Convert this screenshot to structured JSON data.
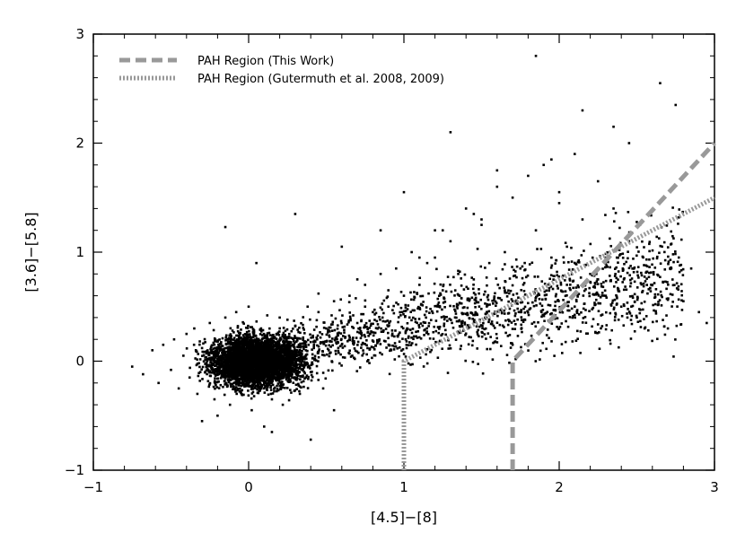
{
  "chart_data": {
    "type": "scatter",
    "title": "",
    "xlabel": "[4.5]−[8]",
    "ylabel": "[3.6]−[5.8]",
    "xlim": [
      -1,
      3
    ],
    "ylim": [
      -1,
      3
    ],
    "x_ticks": [
      -1,
      0,
      1,
      2,
      3
    ],
    "x_tick_labels": [
      "−1",
      "0",
      "1",
      "2",
      "3"
    ],
    "y_ticks": [
      -1,
      0,
      1,
      2,
      3
    ],
    "y_tick_labels": [
      "−1",
      "0",
      "1",
      "2",
      "3"
    ],
    "grid": false,
    "legend_position": "top-left",
    "colors": {
      "points": "#000000",
      "pah_lines": "#999999"
    },
    "series": [
      {
        "kind": "points",
        "note_points_sampled": "dense cloud of sources; representative sample",
        "x": [
          -0.75,
          -0.68,
          -0.62,
          -0.58,
          -0.55,
          -0.5,
          -0.48,
          -0.45,
          -0.42,
          -0.4,
          -0.38,
          -0.35,
          -0.33,
          -0.3,
          -0.28,
          -0.25,
          -0.22,
          -0.2,
          -0.18,
          -0.15,
          -0.12,
          -0.1,
          -0.08,
          -0.05,
          -0.03,
          0.0,
          0.02,
          0.05,
          0.08,
          0.1,
          0.12,
          0.15,
          0.18,
          0.2,
          0.22,
          0.25,
          0.28,
          0.3,
          0.33,
          0.35,
          0.38,
          0.4,
          0.42,
          0.45,
          0.48,
          0.5,
          0.55,
          0.6,
          0.65,
          0.7,
          0.75,
          0.8,
          0.85,
          0.9,
          0.95,
          1.0,
          1.05,
          1.1,
          1.15,
          1.2,
          1.25,
          1.3,
          1.35,
          1.4,
          1.45,
          1.5,
          1.55,
          1.6,
          1.65,
          1.7,
          1.75,
          1.8,
          1.85,
          1.9,
          1.95,
          2.0,
          2.05,
          2.1,
          2.15,
          2.2,
          2.25,
          2.3,
          2.35,
          2.4,
          2.45,
          2.5,
          2.6,
          2.7,
          2.8,
          2.9,
          -0.15,
          0.05,
          0.3,
          0.6,
          0.85,
          1.3,
          1.6,
          1.85,
          2.15,
          2.45,
          2.75,
          -0.05,
          0.2,
          0.45,
          0.7,
          1.1,
          1.5,
          1.75,
          2.05,
          2.35,
          2.65,
          2.95,
          0.1,
          -0.3,
          0.4,
          0.75,
          1.0,
          1.25,
          1.65,
          1.95,
          2.25,
          2.55,
          -0.2,
          0.15,
          0.55,
          0.9,
          1.2,
          1.45,
          1.7,
          2.0,
          2.3,
          2.85
        ],
        "y": [
          -0.05,
          -0.12,
          0.1,
          -0.2,
          0.15,
          -0.08,
          0.2,
          -0.25,
          0.05,
          0.25,
          -0.15,
          0.3,
          -0.3,
          0.12,
          -0.1,
          0.35,
          -0.35,
          0.18,
          -0.22,
          0.4,
          -0.4,
          0.1,
          0.45,
          -0.28,
          0.22,
          0.5,
          -0.45,
          0.15,
          0.3,
          -0.2,
          0.42,
          -0.35,
          0.25,
          0.05,
          -0.4,
          0.38,
          -0.15,
          0.32,
          -0.3,
          0.2,
          0.5,
          -0.1,
          0.12,
          0.45,
          -0.25,
          0.3,
          0.55,
          0.15,
          0.6,
          0.35,
          0.7,
          0.45,
          0.8,
          0.5,
          0.85,
          0.6,
          1.0,
          0.7,
          0.9,
          1.2,
          0.65,
          1.1,
          0.8,
          1.4,
          0.75,
          1.3,
          0.9,
          1.6,
          1.0,
          1.5,
          0.85,
          1.7,
          1.2,
          1.8,
          0.95,
          1.55,
          0.7,
          1.9,
          1.3,
          0.8,
          1.65,
          0.6,
          1.4,
          0.5,
          1.1,
          0.4,
          0.7,
          0.3,
          0.55,
          0.45,
          1.23,
          0.9,
          1.35,
          1.05,
          1.2,
          2.1,
          1.75,
          2.8,
          2.3,
          2.0,
          2.35,
          0.0,
          0.4,
          0.62,
          0.75,
          0.95,
          1.25,
          0.45,
          1.05,
          2.15,
          2.55,
          0.35,
          -0.6,
          -0.55,
          -0.72,
          0.5,
          1.55,
          1.2,
          0.65,
          1.85,
          0.75,
          0.3,
          -0.5,
          -0.65,
          -0.45,
          0.65,
          0.95,
          1.35,
          0.55,
          1.45,
          0.95,
          0.85
        ]
      },
      {
        "name": "PAH Region (This Work)",
        "kind": "line",
        "style": "dashed",
        "x": [
          1.7,
          1.7,
          3.0
        ],
        "y": [
          -1.0,
          0.0,
          2.0
        ]
      },
      {
        "name": "PAH Region (Gutermuth et al. 2008, 2009)",
        "kind": "line",
        "style": "dotted",
        "x": [
          1.0,
          1.0,
          3.0
        ],
        "y": [
          -1.0,
          0.0,
          1.5
        ]
      }
    ]
  }
}
